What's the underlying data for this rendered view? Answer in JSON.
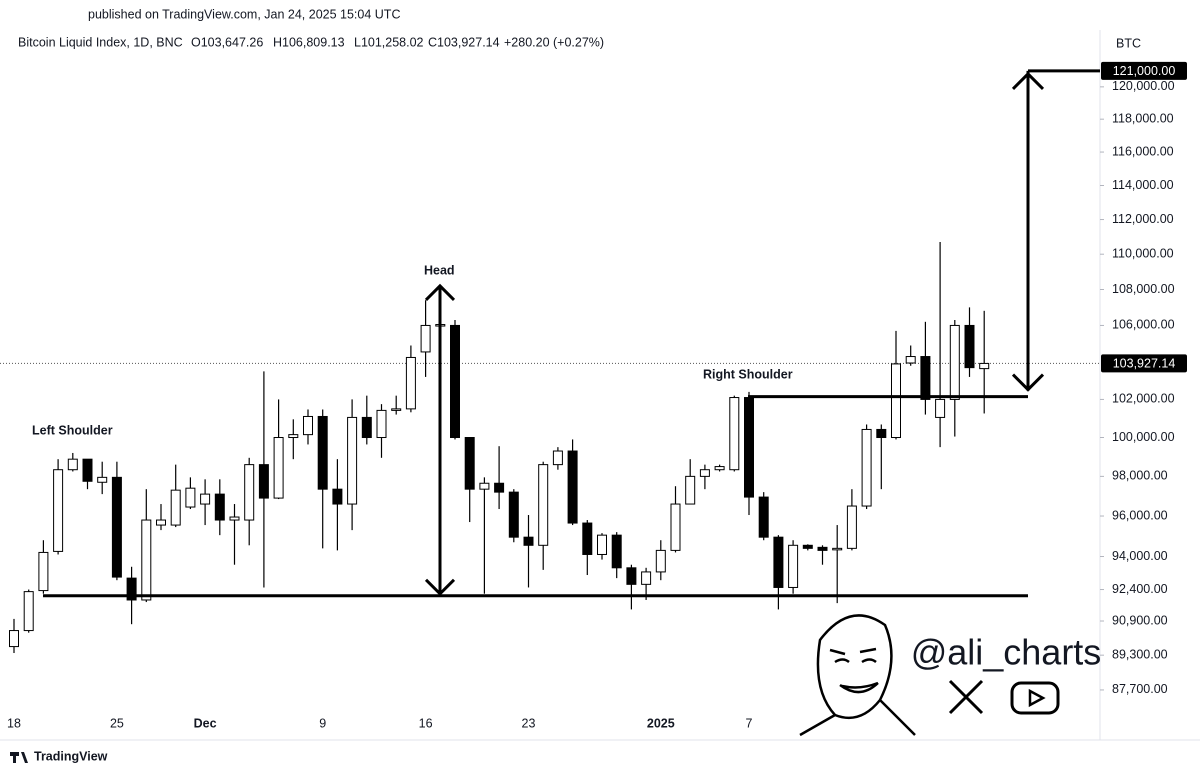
{
  "chart_data": {
    "type": "candlestick",
    "published": "published on TradingView.com, Jan 24, 2025 15:04 UTC",
    "symbol": "Bitcoin Liquid Index, 1D, BNC",
    "header_values": [
      "O103,647.26",
      "H106,809.13",
      "L101,258.02",
      "C103,927.14",
      "+280.20 (+0.27%)"
    ],
    "currency": "BTC",
    "brand": "TradingView",
    "watermark": "@ali_charts",
    "annotations": [
      "Left Shoulder",
      "Head",
      "Right Shoulder"
    ],
    "categories": [
      "18",
      null,
      null,
      null,
      null,
      null,
      null,
      "25",
      null,
      null,
      null,
      null,
      null,
      "Dec",
      null,
      null,
      null,
      null,
      null,
      null,
      null,
      "9",
      null,
      null,
      null,
      null,
      null,
      null,
      "16",
      null,
      null,
      null,
      null,
      null,
      null,
      "23",
      null,
      null,
      null,
      null,
      null,
      null,
      null,
      null,
      "2025",
      null,
      null,
      null,
      null,
      null,
      "7",
      null,
      null,
      null,
      null,
      null,
      null,
      null,
      null,
      null,
      null,
      null,
      null,
      null,
      null,
      null,
      null
    ],
    "open": [
      89700,
      90450,
      92350,
      94250,
      98340,
      98880,
      97700,
      97950,
      92950,
      91900,
      95550,
      95550,
      96450,
      96600,
      97100,
      95800,
      95800,
      98600,
      96900,
      100000,
      100150,
      101100,
      97350,
      96600,
      101050,
      100000,
      101420,
      101500,
      104550,
      106000,
      106000,
      100000,
      97350,
      97650,
      97200,
      94950,
      94550,
      98600,
      99300,
      95650,
      94100,
      95050,
      93450,
      92650,
      93250,
      94300,
      96600,
      98000,
      98340,
      98340,
      102100,
      96950,
      94950,
      92500,
      94550,
      94450,
      94350,
      94400,
      96500,
      100420,
      100000,
      103950,
      104300,
      101050,
      102000,
      106000,
      103647.26
    ],
    "high": [
      91000,
      92400,
      94800,
      98880,
      99200,
      98880,
      98750,
      98750,
      93500,
      97350,
      96600,
      98600,
      97950,
      97850,
      97850,
      96600,
      98950,
      103500,
      102000,
      100950,
      101470,
      101470,
      98880,
      102000,
      102200,
      101750,
      102200,
      104900,
      107400,
      106300,
      106300,
      100000,
      97950,
      99550,
      97350,
      96050,
      98750,
      99500,
      99900,
      95800,
      95150,
      95200,
      93600,
      93450,
      94800,
      97500,
      98880,
      98600,
      98600,
      102200,
      102400,
      97200,
      95050,
      94800,
      94600,
      94550,
      95550,
      97350,
      100680,
      100680,
      105700,
      104900,
      106200,
      110700,
      106300,
      107000,
      106809.13
    ],
    "low": [
      89400,
      90350,
      92200,
      94100,
      98250,
      97350,
      97100,
      92850,
      90750,
      91800,
      95300,
      95450,
      96350,
      95550,
      95050,
      93600,
      94550,
      92500,
      96850,
      98880,
      99640,
      94400,
      94300,
      95300,
      99640,
      98950,
      101200,
      101320,
      103200,
      106000,
      99900,
      95700,
      92200,
      96350,
      94700,
      92500,
      93350,
      98340,
      95550,
      93100,
      93850,
      92950,
      91450,
      91900,
      92850,
      94200,
      96600,
      97350,
      98250,
      98250,
      96050,
      94800,
      91450,
      92200,
      94300,
      93600,
      91750,
      94300,
      96350,
      97350,
      99900,
      103800,
      101200,
      99500,
      100050,
      103200,
      101258.02
    ],
    "close": [
      90450,
      92300,
      94200,
      98340,
      98880,
      97750,
      97950,
      93000,
      91900,
      95800,
      95800,
      97300,
      97400,
      97100,
      95800,
      95950,
      98600,
      96900,
      100000,
      100150,
      101100,
      97350,
      96600,
      101050,
      100000,
      101420,
      101500,
      104250,
      106000,
      106050,
      100000,
      97350,
      97650,
      97200,
      94950,
      94550,
      98600,
      99300,
      95650,
      94100,
      95050,
      93450,
      92650,
      93250,
      94300,
      96600,
      98000,
      98340,
      98500,
      102100,
      96950,
      94950,
      92500,
      94550,
      94400,
      94300,
      94400,
      96500,
      100420,
      100000,
      103900,
      104300,
      102000,
      102000,
      106000,
      103700,
      103927.14
    ],
    "up_color": "#ffffff",
    "down_color": "#000000",
    "ylim": [
      86700,
      123600
    ],
    "log_scale": true,
    "yticks": [
      {
        "value": 120000,
        "label": "120,000.00"
      },
      {
        "value": 118000,
        "label": "118,000.00"
      },
      {
        "value": 116000,
        "label": "116,000.00"
      },
      {
        "value": 114000,
        "label": "114,000.00"
      },
      {
        "value": 112000,
        "label": "112,000.00"
      },
      {
        "value": 110000,
        "label": "110,000.00"
      },
      {
        "value": 108000,
        "label": "108,000.00"
      },
      {
        "value": 106000,
        "label": "106,000.00"
      },
      {
        "value": 102000,
        "label": "102,000.00"
      },
      {
        "value": 100000,
        "label": "100,000.00"
      },
      {
        "value": 98000,
        "label": "98,000.00"
      },
      {
        "value": 96000,
        "label": "96,000.00"
      },
      {
        "value": 94000,
        "label": "94,000.00"
      },
      {
        "value": 92400,
        "label": "92,400.00"
      },
      {
        "value": 90900,
        "label": "90,900.00"
      },
      {
        "value": 89300,
        "label": "89,300.00"
      },
      {
        "value": 87700,
        "label": "87,700.00"
      }
    ],
    "price_labels": [
      {
        "value": 121000,
        "label": "121,000.00"
      },
      {
        "value": 103927.14,
        "label": "103,927.14"
      }
    ],
    "levels": {
      "support": 92100,
      "neckline": 102150,
      "head_top": 108200
    },
    "grid": false
  }
}
